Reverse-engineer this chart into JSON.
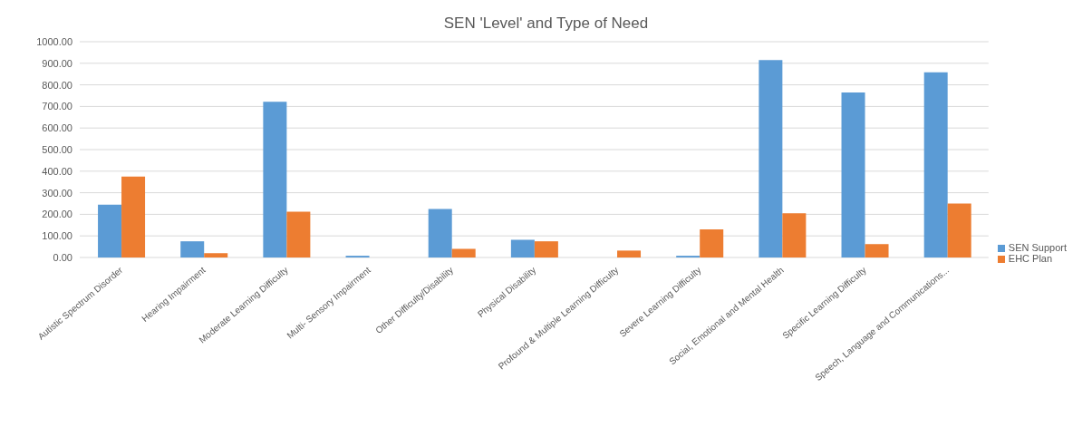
{
  "chart_data": {
    "type": "bar",
    "title": "SEN 'Level' and Type of Need",
    "categories": [
      "Autistic Spectrum Disorder",
      "Hearing Impairment",
      "Moderate Learning Difficulty",
      "Multi- Sensory Impairment",
      "Other Difficulty/Disability",
      "Physical Disability",
      "Profound & Multiple Learning Difficulty",
      "Severe Learning Difficulty",
      "Social, Emotional and Mental Health",
      "Specific Learning Difficulty",
      "Speech, Language and Communications..."
    ],
    "series": [
      {
        "name": "SEN Support",
        "color": "#5b9bd5",
        "values": [
          245,
          75,
          722,
          8,
          225,
          82,
          0,
          8,
          915,
          765,
          858
        ]
      },
      {
        "name": "EHC Plan",
        "color": "#ed7d31",
        "values": [
          375,
          20,
          212,
          0,
          40,
          75,
          32,
          130,
          205,
          62,
          250
        ]
      }
    ],
    "ylim": [
      0,
      1000
    ],
    "yticks": [
      {
        "value": 0,
        "label": "0.00"
      },
      {
        "value": 100,
        "label": "100.00"
      },
      {
        "value": 200,
        "label": "200.00"
      },
      {
        "value": 300,
        "label": "300.00"
      },
      {
        "value": 400,
        "label": "400.00"
      },
      {
        "value": 500,
        "label": "500.00"
      },
      {
        "value": 600,
        "label": "600.00"
      },
      {
        "value": 700,
        "label": "700.00"
      },
      {
        "value": 800,
        "label": "800.00"
      },
      {
        "value": 900,
        "label": "900.00"
      },
      {
        "value": 1000,
        "label": "1000.00"
      }
    ],
    "grid": "y",
    "legend": "right"
  }
}
